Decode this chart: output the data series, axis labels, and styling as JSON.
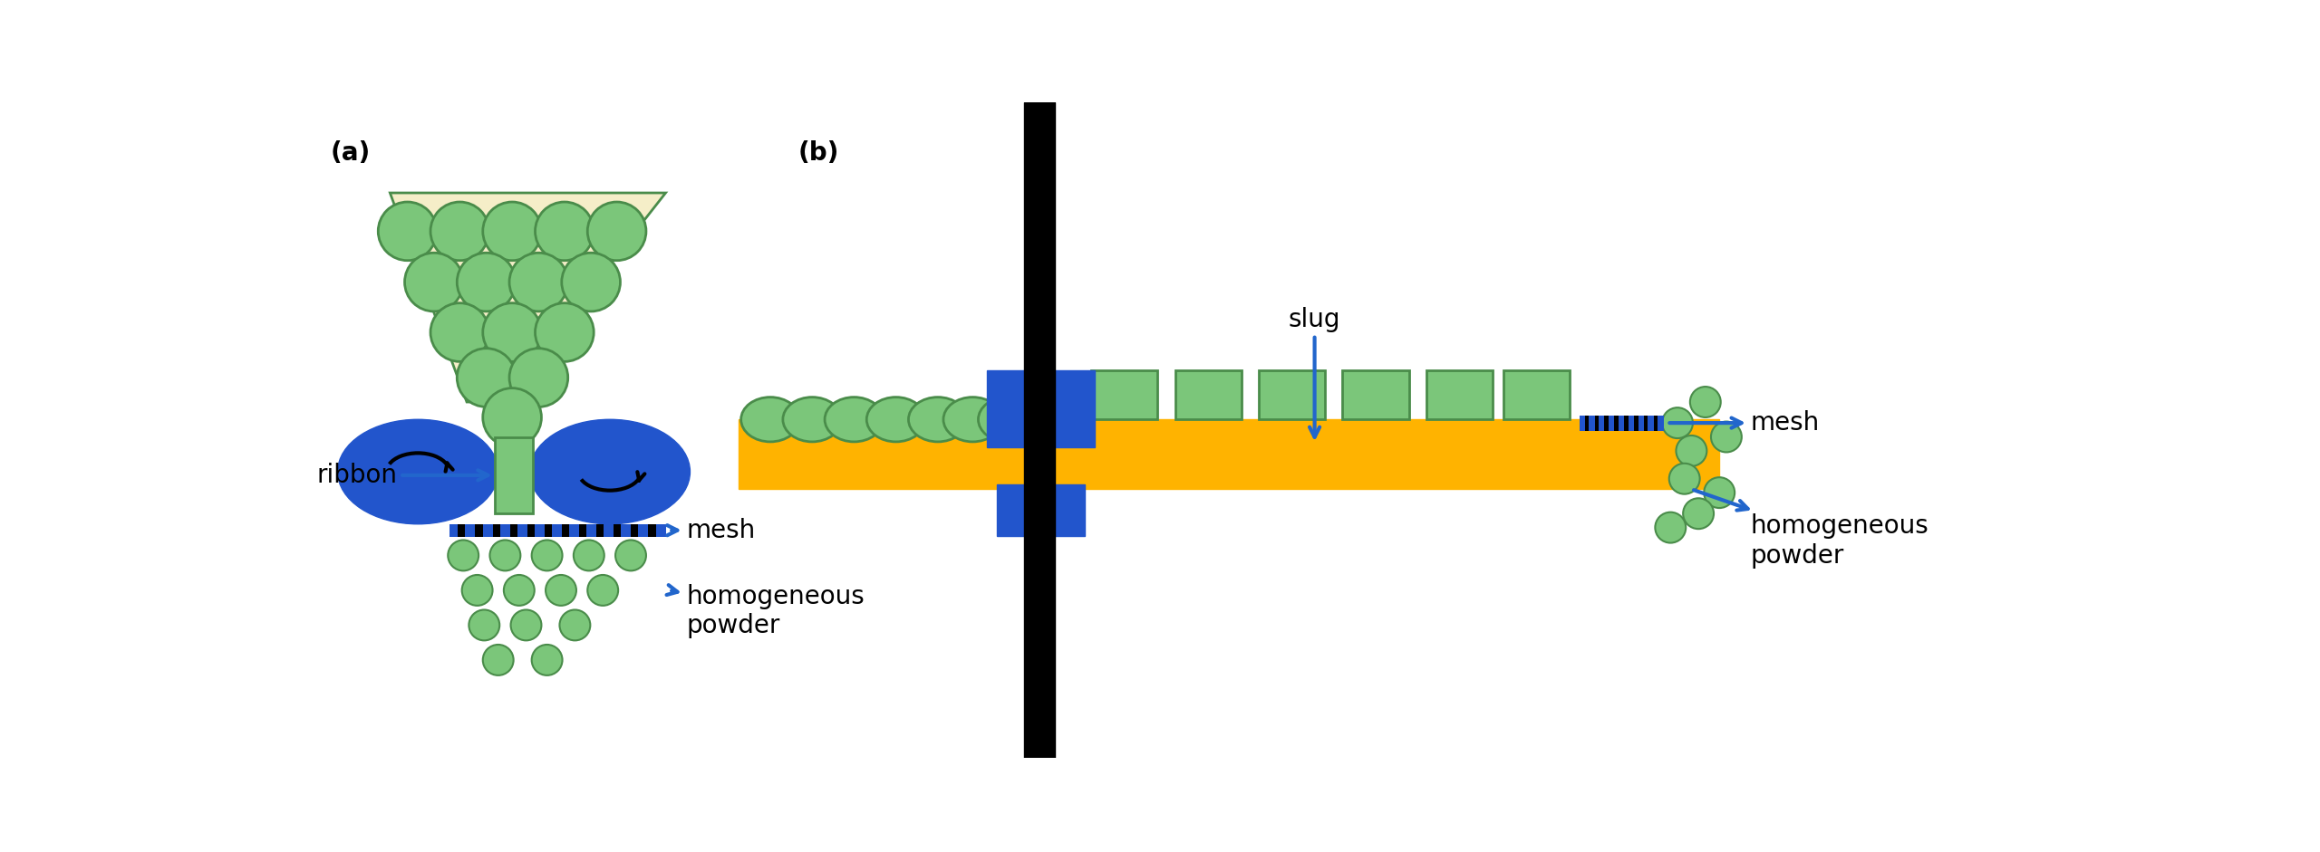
{
  "bg_color": "#ffffff",
  "green_fill": "#7bc67a",
  "green_edge": "#4a8c4a",
  "blue_roller": "#2255cc",
  "blue_arrow": "#2266cc",
  "orange_belt": "#ffb300",
  "blue_block": "#2255cc",
  "mesh_blue": "#2255cc",
  "hopper_fill": "#f5eec8",
  "label_a": "(a)",
  "label_b": "(b)",
  "label_ribbon": "ribbon",
  "label_mesh": "mesh",
  "label_homo": "homogeneous\npowder",
  "label_slug": "slug",
  "fontsize_label": 18,
  "fontsize_ab": 20
}
